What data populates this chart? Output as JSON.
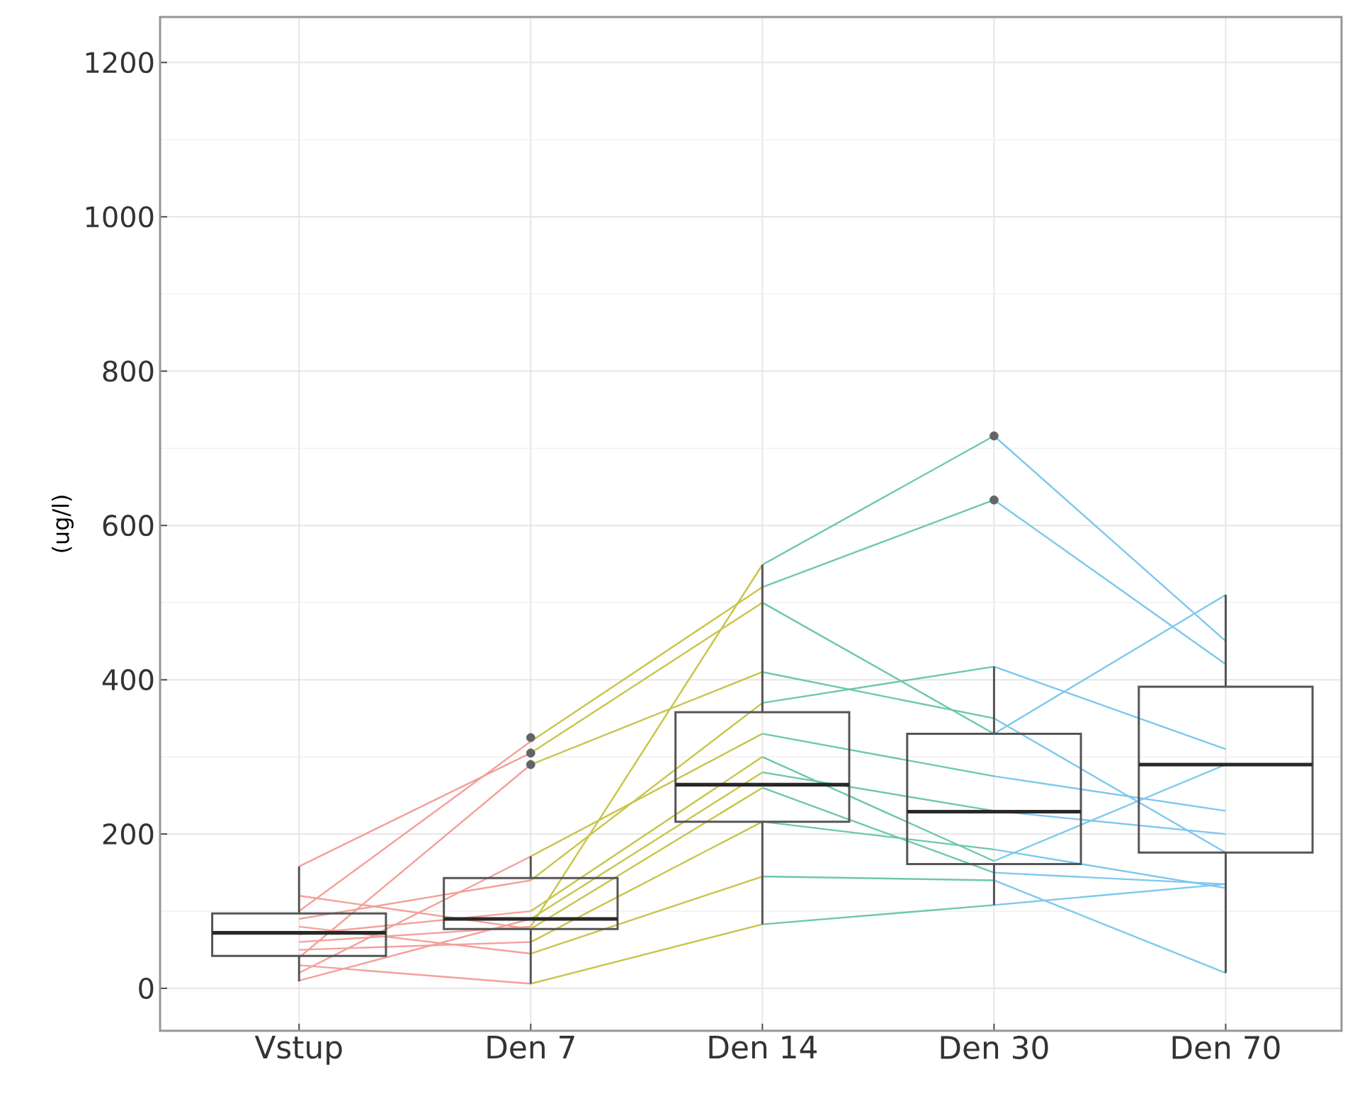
{
  "chart_data": {
    "type": "box",
    "ylabel": "(ug/l)",
    "categories": [
      "Vstup",
      "Den 7",
      "Den 14",
      "Den 30",
      "Den 70"
    ],
    "ylim": [
      -55,
      1259
    ],
    "yticks": [
      0,
      200,
      400,
      600,
      800,
      1000,
      1200
    ],
    "grid": true,
    "boxes": [
      {
        "low": 9,
        "q1": 42,
        "median": 72,
        "q3": 97,
        "high": 158
      },
      {
        "low": 6,
        "q1": 77,
        "median": 90,
        "q3": 143,
        "high": 171,
        "outliers": [
          290,
          305,
          325
        ]
      },
      {
        "low": 83,
        "q1": 216,
        "median": 264,
        "q3": 358,
        "high": 549
      },
      {
        "low": 108,
        "q1": 161,
        "median": 229,
        "q3": 330,
        "high": 417,
        "outliers": [
          633,
          716
        ]
      },
      {
        "low": 20,
        "q1": 176,
        "median": 290,
        "q3": 391,
        "high": 510
      }
    ],
    "series": [
      {
        "type": "line",
        "color": "#f4a09a",
        "values": [
          60,
          80,
          null,
          null,
          null
        ]
      },
      {
        "type": "line",
        "color": "#f4a09a",
        "values": [
          100,
          320,
          null,
          null,
          null
        ]
      },
      {
        "type": "line",
        "color": "#f4a09a",
        "values": [
          158,
          305,
          null,
          null,
          null
        ]
      },
      {
        "type": "line",
        "color": "#f4a09a",
        "values": [
          40,
          290,
          null,
          null,
          null
        ]
      },
      {
        "type": "line",
        "color": "#f4a09a",
        "values": [
          90,
          140,
          null,
          null,
          null
        ]
      },
      {
        "type": "line",
        "color": "#f4a09a",
        "values": [
          20,
          171,
          null,
          null,
          null
        ]
      },
      {
        "type": "line",
        "color": "#f4a09a",
        "values": [
          70,
          100,
          null,
          null,
          null
        ]
      },
      {
        "type": "line",
        "color": "#f4a09a",
        "values": [
          10,
          90,
          null,
          null,
          null
        ]
      },
      {
        "type": "line",
        "color": "#f4a09a",
        "values": [
          120,
          77,
          null,
          null,
          null
        ]
      },
      {
        "type": "line",
        "color": "#f4a09a",
        "values": [
          50,
          60,
          null,
          null,
          null
        ]
      },
      {
        "type": "line",
        "color": "#f4a09a",
        "values": [
          80,
          45,
          null,
          null,
          null
        ]
      },
      {
        "type": "line",
        "color": "#f4a09a",
        "values": [
          30,
          6,
          null,
          null,
          null
        ]
      },
      {
        "type": "line",
        "color": "#c8c44a",
        "values": [
          null,
          80,
          549,
          null,
          null
        ]
      },
      {
        "type": "line",
        "color": "#c8c44a",
        "values": [
          null,
          320,
          520,
          null,
          null
        ]
      },
      {
        "type": "line",
        "color": "#c8c44a",
        "values": [
          null,
          305,
          500,
          null,
          null
        ]
      },
      {
        "type": "line",
        "color": "#c8c44a",
        "values": [
          null,
          290,
          410,
          null,
          null
        ]
      },
      {
        "type": "line",
        "color": "#c8c44a",
        "values": [
          null,
          140,
          370,
          null,
          null
        ]
      },
      {
        "type": "line",
        "color": "#c8c44a",
        "values": [
          null,
          171,
          330,
          null,
          null
        ]
      },
      {
        "type": "line",
        "color": "#c8c44a",
        "values": [
          null,
          100,
          300,
          null,
          null
        ]
      },
      {
        "type": "line",
        "color": "#c8c44a",
        "values": [
          null,
          90,
          280,
          null,
          null
        ]
      },
      {
        "type": "line",
        "color": "#c8c44a",
        "values": [
          null,
          77,
          260,
          null,
          null
        ]
      },
      {
        "type": "line",
        "color": "#c8c44a",
        "values": [
          null,
          60,
          216,
          null,
          null
        ]
      },
      {
        "type": "line",
        "color": "#c8c44a",
        "values": [
          null,
          45,
          145,
          null,
          null
        ]
      },
      {
        "type": "line",
        "color": "#c8c44a",
        "values": [
          null,
          6,
          83,
          null,
          null
        ]
      },
      {
        "type": "line",
        "color": "#6cc7b0",
        "values": [
          null,
          null,
          549,
          716,
          null
        ]
      },
      {
        "type": "line",
        "color": "#6cc7b0",
        "values": [
          null,
          null,
          520,
          633,
          null
        ]
      },
      {
        "type": "line",
        "color": "#6cc7b0",
        "values": [
          null,
          null,
          500,
          330,
          null
        ]
      },
      {
        "type": "line",
        "color": "#6cc7b0",
        "values": [
          null,
          null,
          410,
          350,
          null
        ]
      },
      {
        "type": "line",
        "color": "#6cc7b0",
        "values": [
          null,
          null,
          370,
          417,
          null
        ]
      },
      {
        "type": "line",
        "color": "#6cc7b0",
        "values": [
          null,
          null,
          330,
          275,
          null
        ]
      },
      {
        "type": "line",
        "color": "#6cc7b0",
        "values": [
          null,
          null,
          300,
          165,
          null
        ]
      },
      {
        "type": "line",
        "color": "#6cc7b0",
        "values": [
          null,
          null,
          280,
          230,
          null
        ]
      },
      {
        "type": "line",
        "color": "#6cc7b0",
        "values": [
          null,
          null,
          260,
          150,
          null
        ]
      },
      {
        "type": "line",
        "color": "#6cc7b0",
        "values": [
          null,
          null,
          216,
          180,
          null
        ]
      },
      {
        "type": "line",
        "color": "#6cc7b0",
        "values": [
          null,
          null,
          145,
          140,
          null
        ]
      },
      {
        "type": "line",
        "color": "#6cc7b0",
        "values": [
          null,
          null,
          83,
          108,
          null
        ]
      },
      {
        "type": "line",
        "color": "#7cc8ee",
        "values": [
          null,
          null,
          null,
          716,
          450
        ]
      },
      {
        "type": "line",
        "color": "#7cc8ee",
        "values": [
          null,
          null,
          null,
          633,
          420
        ]
      },
      {
        "type": "line",
        "color": "#7cc8ee",
        "values": [
          null,
          null,
          null,
          330,
          510
        ]
      },
      {
        "type": "line",
        "color": "#7cc8ee",
        "values": [
          null,
          null,
          null,
          350,
          176
        ]
      },
      {
        "type": "line",
        "color": "#7cc8ee",
        "values": [
          null,
          null,
          null,
          417,
          310
        ]
      },
      {
        "type": "line",
        "color": "#7cc8ee",
        "values": [
          null,
          null,
          null,
          275,
          230
        ]
      },
      {
        "type": "line",
        "color": "#7cc8ee",
        "values": [
          null,
          null,
          null,
          165,
          290
        ]
      },
      {
        "type": "line",
        "color": "#7cc8ee",
        "values": [
          null,
          null,
          null,
          230,
          200
        ]
      },
      {
        "type": "line",
        "color": "#7cc8ee",
        "values": [
          null,
          null,
          null,
          150,
          135
        ]
      },
      {
        "type": "line",
        "color": "#7cc8ee",
        "values": [
          null,
          null,
          null,
          180,
          130
        ]
      },
      {
        "type": "line",
        "color": "#7cc8ee",
        "values": [
          null,
          null,
          null,
          140,
          20
        ]
      },
      {
        "type": "line",
        "color": "#7cc8ee",
        "values": [
          null,
          null,
          null,
          108,
          135
        ]
      }
    ]
  }
}
